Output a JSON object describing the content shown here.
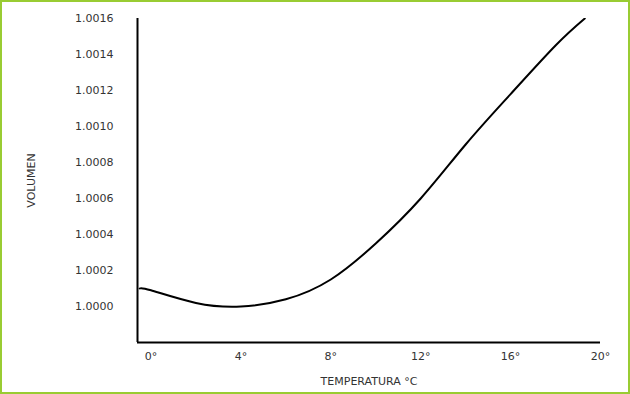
{
  "chart_data": {
    "type": "line",
    "x_label": "TEMPERATURA °C",
    "y_label": "VOLUMEN",
    "x": [
      -0.5,
      0,
      2,
      4,
      6,
      8,
      10,
      12,
      14,
      16,
      18,
      19.3
    ],
    "values": [
      1.0001,
      1.00009,
      1.00002,
      1.0,
      1.00004,
      1.00015,
      1.00035,
      1.0006,
      1.0009,
      1.00118,
      1.00145,
      1.0016
    ],
    "color": "#000000",
    "xlim": [
      -0.6,
      20
    ],
    "ylim": [
      0.9998,
      1.0016
    ],
    "xticks": [
      {
        "value": 0,
        "label": "0°"
      },
      {
        "value": 4,
        "label": "4°"
      },
      {
        "value": 8,
        "label": "8°"
      },
      {
        "value": 12,
        "label": "12°"
      },
      {
        "value": 16,
        "label": "16°"
      },
      {
        "value": 20,
        "label": "20°"
      }
    ],
    "yticks": [
      {
        "value": 1.0,
        "label": "1.0000"
      },
      {
        "value": 1.0002,
        "label": "1.0002"
      },
      {
        "value": 1.0004,
        "label": "1.0004"
      },
      {
        "value": 1.0006,
        "label": "1.0006"
      },
      {
        "value": 1.0008,
        "label": "1.0008"
      },
      {
        "value": 1.001,
        "label": "1.0010"
      },
      {
        "value": 1.0012,
        "label": "1.0012"
      },
      {
        "value": 1.0014,
        "label": "1.0014"
      },
      {
        "value": 1.0016,
        "label": "1.0016"
      }
    ],
    "grid": false
  }
}
